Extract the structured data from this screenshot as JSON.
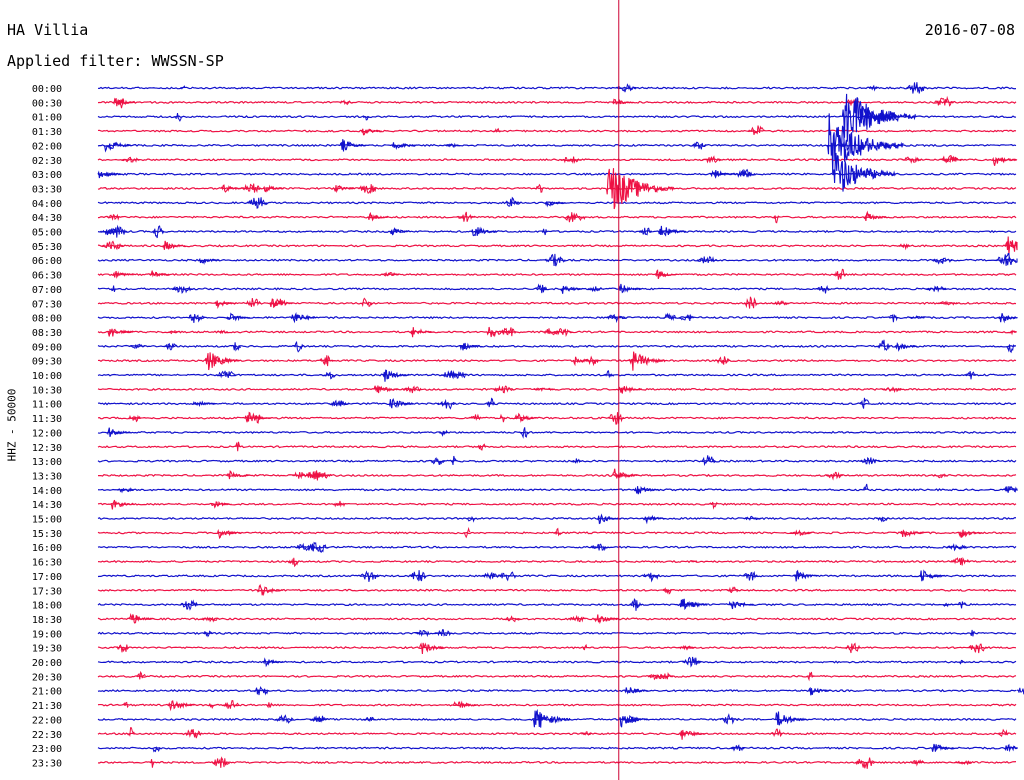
{
  "header": {
    "station": "HA Villia",
    "date": "2016-07-08",
    "filter": "Applied filter: WWSSN-SP"
  },
  "colors": {
    "even_trace": "#1111cc",
    "odd_trace": "#ee1144",
    "current_time_marker": "#cc0033",
    "text": "#000000"
  },
  "chart_data": {
    "type": "line",
    "subtype": "helicorder",
    "title": "HA Villia",
    "ylabel": "HHZ - 50000",
    "xlabel": "",
    "rows": [
      "00:00",
      "00:30",
      "01:00",
      "01:30",
      "02:00",
      "02:30",
      "03:00",
      "03:30",
      "04:00",
      "04:30",
      "05:00",
      "05:30",
      "06:00",
      "06:30",
      "07:00",
      "07:30",
      "08:00",
      "08:30",
      "09:00",
      "09:30",
      "10:00",
      "10:30",
      "11:00",
      "11:30",
      "12:00",
      "12:30",
      "13:00",
      "13:30",
      "14:00",
      "14:30",
      "15:00",
      "15:30",
      "16:00",
      "16:30",
      "17:00",
      "17:30",
      "18:00",
      "18:30",
      "19:00",
      "19:30",
      "20:00",
      "20:30",
      "21:00",
      "21:30",
      "22:00",
      "22:30",
      "23:00",
      "23:30"
    ],
    "row_minutes": 30,
    "current_time_minute_in_row": 17,
    "events": [
      {
        "row": "00:30",
        "minute": 0.5,
        "amp": 0.35
      },
      {
        "row": "00:30",
        "minute": 16.8,
        "amp": 0.3
      },
      {
        "row": "01:00",
        "minute": 24.3,
        "amp": 2.2
      },
      {
        "row": "01:00",
        "minute": 24.8,
        "amp": 1.1
      },
      {
        "row": "01:30",
        "minute": 8.6,
        "amp": 0.3
      },
      {
        "row": "02:00",
        "minute": 0.2,
        "amp": 0.55
      },
      {
        "row": "02:00",
        "minute": 7.9,
        "amp": 0.5
      },
      {
        "row": "02:00",
        "minute": 9.6,
        "amp": 0.4
      },
      {
        "row": "02:00",
        "minute": 23.8,
        "amp": 2.3
      },
      {
        "row": "02:30",
        "minute": 29.2,
        "amp": 0.45
      },
      {
        "row": "03:00",
        "minute": 24.0,
        "amp": 1.8
      },
      {
        "row": "03:00",
        "minute": 0.0,
        "amp": 0.4
      },
      {
        "row": "03:00",
        "minute": 20.1,
        "amp": 0.3
      },
      {
        "row": "03:30",
        "minute": 16.6,
        "amp": 2.0
      },
      {
        "row": "03:30",
        "minute": 4.0,
        "amp": 0.35
      },
      {
        "row": "03:30",
        "minute": 5.4,
        "amp": 0.3
      },
      {
        "row": "03:30",
        "minute": 7.7,
        "amp": 0.3
      },
      {
        "row": "04:00",
        "minute": 14.6,
        "amp": 0.3
      },
      {
        "row": "04:30",
        "minute": 8.8,
        "amp": 0.3
      },
      {
        "row": "04:30",
        "minute": 25.0,
        "amp": 0.4
      },
      {
        "row": "05:00",
        "minute": 12.2,
        "amp": 0.5
      },
      {
        "row": "05:00",
        "minute": 18.3,
        "amp": 0.55
      },
      {
        "row": "05:00",
        "minute": 9.5,
        "amp": 0.35
      },
      {
        "row": "05:30",
        "minute": 2.1,
        "amp": 0.4
      },
      {
        "row": "05:30",
        "minute": 29.6,
        "amp": 0.8
      },
      {
        "row": "06:00",
        "minute": 29.6,
        "amp": 0.6
      },
      {
        "row": "06:00",
        "minute": 3.3,
        "amp": 0.3
      },
      {
        "row": "06:30",
        "minute": 0.5,
        "amp": 0.3
      },
      {
        "row": "06:30",
        "minute": 1.7,
        "amp": 0.3
      },
      {
        "row": "06:30",
        "minute": 18.2,
        "amp": 0.35
      },
      {
        "row": "07:00",
        "minute": 15.1,
        "amp": 0.35
      },
      {
        "row": "07:00",
        "minute": 17.0,
        "amp": 0.4
      },
      {
        "row": "07:30",
        "minute": 3.8,
        "amp": 0.35
      },
      {
        "row": "07:30",
        "minute": 5.6,
        "amp": 0.4
      },
      {
        "row": "08:00",
        "minute": 4.2,
        "amp": 0.4
      },
      {
        "row": "08:00",
        "minute": 6.3,
        "amp": 0.5
      },
      {
        "row": "08:00",
        "minute": 29.4,
        "amp": 0.45
      },
      {
        "row": "08:30",
        "minute": 0.3,
        "amp": 0.5
      },
      {
        "row": "08:30",
        "minute": 10.2,
        "amp": 0.4
      },
      {
        "row": "08:30",
        "minute": 12.7,
        "amp": 0.5
      },
      {
        "row": "09:00",
        "minute": 11.8,
        "amp": 0.4
      },
      {
        "row": "09:00",
        "minute": 26.0,
        "amp": 0.4
      },
      {
        "row": "09:30",
        "minute": 3.5,
        "amp": 0.8
      },
      {
        "row": "09:30",
        "minute": 17.3,
        "amp": 0.9
      },
      {
        "row": "09:30",
        "minute": 15.5,
        "amp": 0.35
      },
      {
        "row": "10:00",
        "minute": 9.3,
        "amp": 0.5
      },
      {
        "row": "10:30",
        "minute": 9.0,
        "amp": 0.45
      },
      {
        "row": "10:30",
        "minute": 17.0,
        "amp": 0.4
      },
      {
        "row": "11:00",
        "minute": 9.5,
        "amp": 0.45
      },
      {
        "row": "11:00",
        "minute": 3.2,
        "amp": 0.3
      },
      {
        "row": "11:30",
        "minute": 4.8,
        "amp": 0.5
      },
      {
        "row": "11:30",
        "minute": 13.6,
        "amp": 0.4
      },
      {
        "row": "12:00",
        "minute": 0.3,
        "amp": 0.4
      },
      {
        "row": "13:30",
        "minute": 16.8,
        "amp": 0.5
      },
      {
        "row": "13:30",
        "minute": 4.2,
        "amp": 0.4
      },
      {
        "row": "13:30",
        "minute": 6.8,
        "amp": 0.4
      },
      {
        "row": "14:00",
        "minute": 17.5,
        "amp": 0.45
      },
      {
        "row": "14:00",
        "minute": 29.6,
        "amp": 0.45
      },
      {
        "row": "14:30",
        "minute": 0.4,
        "amp": 0.4
      },
      {
        "row": "14:30",
        "minute": 3.7,
        "amp": 0.3
      },
      {
        "row": "15:00",
        "minute": 16.3,
        "amp": 0.4
      },
      {
        "row": "15:00",
        "minute": 17.8,
        "amp": 0.35
      },
      {
        "row": "15:30",
        "minute": 3.9,
        "amp": 0.4
      },
      {
        "row": "15:30",
        "minute": 26.2,
        "amp": 0.4
      },
      {
        "row": "15:30",
        "minute": 28.1,
        "amp": 0.4
      },
      {
        "row": "17:00",
        "minute": 22.7,
        "amp": 0.45
      },
      {
        "row": "17:00",
        "minute": 26.8,
        "amp": 0.5
      },
      {
        "row": "17:30",
        "minute": 5.2,
        "amp": 0.5
      },
      {
        "row": "18:00",
        "minute": 19.0,
        "amp": 0.55
      },
      {
        "row": "18:00",
        "minute": 20.6,
        "amp": 0.45
      },
      {
        "row": "18:30",
        "minute": 1.0,
        "amp": 0.5
      },
      {
        "row": "18:30",
        "minute": 16.2,
        "amp": 0.45
      },
      {
        "row": "19:30",
        "minute": 10.5,
        "amp": 0.5
      },
      {
        "row": "20:00",
        "minute": 5.4,
        "amp": 0.3
      },
      {
        "row": "21:00",
        "minute": 17.2,
        "amp": 0.4
      },
      {
        "row": "21:00",
        "minute": 23.2,
        "amp": 0.35
      },
      {
        "row": "21:30",
        "minute": 2.3,
        "amp": 0.5
      },
      {
        "row": "21:30",
        "minute": 11.6,
        "amp": 0.45
      },
      {
        "row": "22:00",
        "minute": 14.2,
        "amp": 0.9
      },
      {
        "row": "22:00",
        "minute": 17.0,
        "amp": 0.6
      },
      {
        "row": "22:00",
        "minute": 22.1,
        "amp": 0.7
      },
      {
        "row": "22:30",
        "minute": 19.0,
        "amp": 0.45
      },
      {
        "row": "23:00",
        "minute": 27.2,
        "amp": 0.4
      },
      {
        "row": "23:00",
        "minute": 29.6,
        "amp": 0.35
      }
    ]
  }
}
